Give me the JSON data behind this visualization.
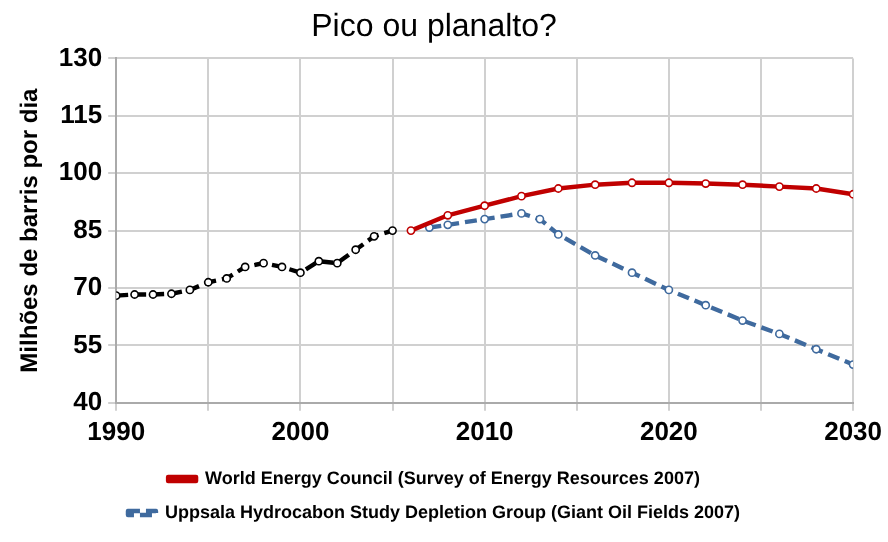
{
  "chart_data": {
    "type": "line",
    "title": "Pico ou planalto?",
    "ylabel": "Milhões de barris por dia",
    "xlim": [
      1990,
      2030
    ],
    "xticks": [
      1990,
      {
        "value": 1995,
        "label": null
      },
      2000,
      {
        "value": 2005,
        "label": null
      },
      2010,
      {
        "value": 2015,
        "label": null
      },
      2020,
      {
        "value": 2025,
        "label": null
      },
      2030
    ],
    "ylim": [
      40,
      130
    ],
    "yticks": [
      40,
      55,
      70,
      85,
      100,
      115,
      130
    ],
    "grid": true,
    "legend": "bottom",
    "marker": "circle",
    "series": [
      {
        "color": "#000000",
        "line_style": "dashed",
        "x": [
          1990,
          1991,
          1992,
          1993,
          1994,
          1995,
          1996,
          1997,
          1998,
          1999,
          2000,
          2001,
          2002,
          2003,
          2004,
          2005
        ],
        "values": [
          68,
          68.3,
          68.3,
          68.5,
          69.5,
          71.5,
          72.5,
          75.5,
          76.5,
          75.5,
          74,
          77,
          76.5,
          80,
          83.5,
          85
        ]
      },
      {
        "name": "World Energy Council (Survey of Energy Resources 2007)",
        "color": "#c00000",
        "line_style": "solid",
        "x": [
          2006,
          2008,
          2010,
          2012,
          2014,
          2016,
          2018,
          2020,
          2022,
          2024,
          2026,
          2028,
          2030
        ],
        "values": [
          85,
          89,
          91.5,
          94,
          96,
          97,
          97.5,
          97.5,
          97.3,
          97,
          96.5,
          96,
          94.5
        ]
      },
      {
        "name": "Uppsala Hydrocabon Study Depletion Group (Giant Oil Fields 2007)",
        "color": "#3f6a9e",
        "line_style": "dashed",
        "x": [
          2007,
          2008,
          2010,
          2012,
          2013,
          2014,
          2016,
          2018,
          2020,
          2022,
          2024,
          2026,
          2028,
          2030
        ],
        "values": [
          85.8,
          86.5,
          88,
          89.5,
          88,
          84,
          78.5,
          74,
          69.5,
          65.5,
          61.5,
          58,
          54,
          50
        ]
      }
    ]
  }
}
